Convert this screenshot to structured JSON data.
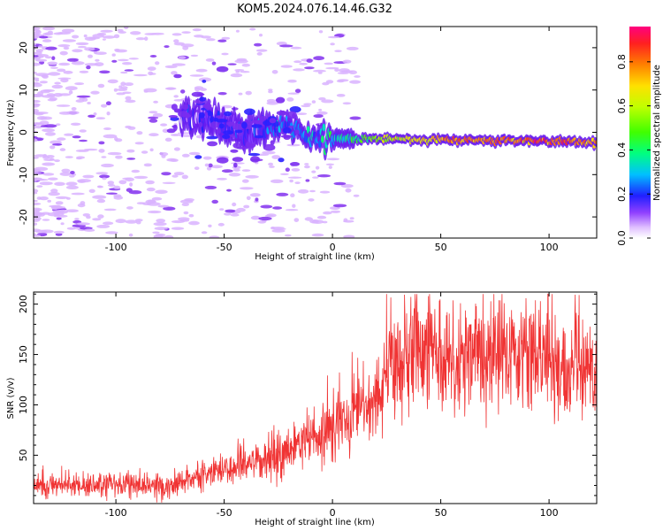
{
  "title": "KOM5.2024.076.14.46.G32",
  "chart_data": [
    {
      "type": "heatmap",
      "xlabel": "Height of straight line (km)",
      "ylabel": "Frequency (Hz)",
      "xlim": [
        -138,
        122
      ],
      "ylim": [
        -25,
        25
      ],
      "xticks": [
        -100,
        -50,
        0,
        50,
        100
      ],
      "yticks": [
        -20,
        -10,
        0,
        10,
        20
      ],
      "colorbar": {
        "label": "Normalized spectral amplitude",
        "range": [
          0.0,
          0.96
        ],
        "ticks": [
          0.0,
          0.2,
          0.4,
          0.6,
          0.8
        ]
      },
      "ridge": {
        "description_points": [
          [
            -138,
            -1
          ],
          [
            -60,
            4
          ],
          [
            -45,
            0
          ],
          [
            -35,
            0
          ],
          [
            -20,
            1.5
          ],
          [
            -10,
            -1
          ],
          [
            0,
            -1.5
          ],
          [
            20,
            -1.5
          ],
          [
            50,
            -1.8
          ],
          [
            80,
            -2
          ],
          [
            100,
            -2
          ],
          [
            122,
            -2.5
          ]
        ],
        "amplitude_points": [
          [
            -138,
            0.02
          ],
          [
            -60,
            0.12
          ],
          [
            -40,
            0.18
          ],
          [
            -25,
            0.25
          ],
          [
            -10,
            0.3
          ],
          [
            5,
            0.35
          ],
          [
            20,
            0.55
          ],
          [
            40,
            0.7
          ],
          [
            60,
            0.82
          ],
          [
            80,
            0.85
          ],
          [
            100,
            0.85
          ],
          [
            122,
            0.8
          ]
        ]
      }
    },
    {
      "type": "line",
      "xlabel": "Height of straight line (km)",
      "ylabel": "SNR (v/v)",
      "xlim": [
        -138,
        122
      ],
      "ylim": [
        2,
        212
      ],
      "xticks": [
        -100,
        -50,
        0,
        50,
        100
      ],
      "yticks": [
        50,
        100,
        150,
        200
      ],
      "color": "#f03333",
      "trend_points": [
        [
          -138,
          20
        ],
        [
          -100,
          20
        ],
        [
          -75,
          20
        ],
        [
          -60,
          30
        ],
        [
          -45,
          40
        ],
        [
          -30,
          45
        ],
        [
          -20,
          55
        ],
        [
          -10,
          65
        ],
        [
          0,
          75
        ],
        [
          10,
          90
        ],
        [
          20,
          100
        ],
        [
          25,
          140
        ],
        [
          40,
          150
        ],
        [
          60,
          150
        ],
        [
          80,
          155
        ],
        [
          100,
          150
        ],
        [
          110,
          140
        ],
        [
          122,
          125
        ]
      ]
    }
  ]
}
